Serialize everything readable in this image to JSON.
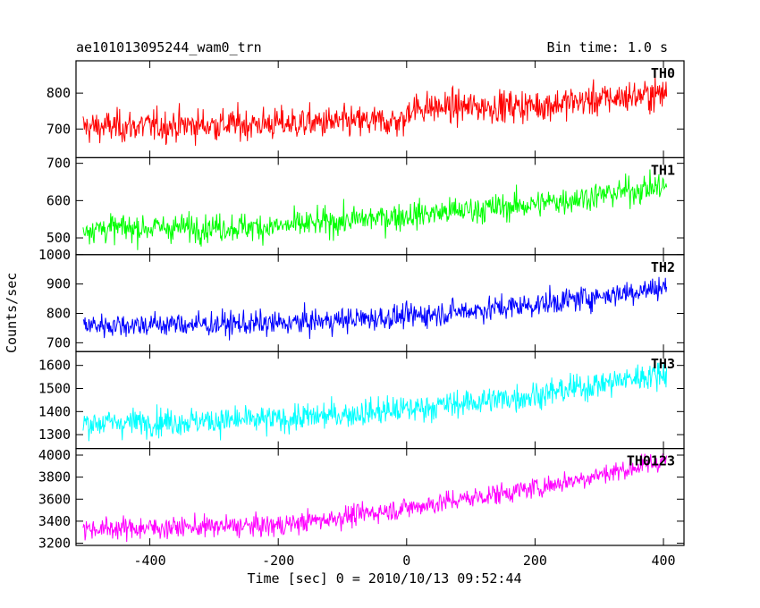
{
  "header": {
    "title": "ae101013095244_wam0_trn",
    "bin_time": "Bin time: 1.0 s"
  },
  "chart_data": {
    "type": "line",
    "title": "ae101013095244_wam0_trn",
    "xlabel": "Time [sec] 0 = 2010/10/13 09:52:44",
    "ylabel": "Counts/sec",
    "xlim": [
      -515,
      432
    ],
    "xticks": [
      -400,
      -200,
      0,
      200,
      400
    ],
    "grid": false,
    "panels": [
      {
        "name": "TH0",
        "color": "#ff0000",
        "ylim": [
          620,
          890
        ],
        "yticks": [
          700,
          800
        ],
        "series": {
          "x_start": -504,
          "x_end": 405,
          "trend_x": [
            -504,
            -200,
            0,
            1,
            200,
            405
          ],
          "trend_y": [
            705,
            715,
            722,
            758,
            765,
            800
          ],
          "noise_sd": 30
        }
      },
      {
        "name": "TH1",
        "color": "#00ff00",
        "ylim": [
          455,
          715
        ],
        "yticks": [
          500,
          600,
          700
        ],
        "series": {
          "x_start": -504,
          "x_end": 405,
          "trend_x": [
            -504,
            -200,
            0,
            200,
            405
          ],
          "trend_y": [
            525,
            530,
            560,
            590,
            640
          ],
          "noise_sd": 25
        }
      },
      {
        "name": "TH2",
        "color": "#0000ff",
        "ylim": [
          670,
          1000
        ],
        "yticks": [
          700,
          800,
          900,
          1000
        ],
        "series": {
          "x_start": -504,
          "x_end": 405,
          "trend_x": [
            -504,
            -200,
            0,
            200,
            405
          ],
          "trend_y": [
            760,
            765,
            790,
            830,
            890
          ],
          "noise_sd": 28
        }
      },
      {
        "name": "TH3",
        "color": "#00ffff",
        "ylim": [
          1240,
          1660
        ],
        "yticks": [
          1300,
          1400,
          1500,
          1600
        ],
        "series": {
          "x_start": -504,
          "x_end": 405,
          "trend_x": [
            -504,
            -200,
            0,
            200,
            405
          ],
          "trend_y": [
            1350,
            1365,
            1410,
            1470,
            1570
          ],
          "noise_sd": 40
        }
      },
      {
        "name": "TH0123",
        "color": "#ff00ff",
        "ylim": [
          3180,
          4060
        ],
        "yticks": [
          3200,
          3400,
          3600,
          3800,
          4000
        ],
        "series": {
          "x_start": -504,
          "x_end": 405,
          "trend_x": [
            -504,
            -200,
            0,
            200,
            405
          ],
          "trend_y": [
            3330,
            3360,
            3520,
            3700,
            3950
          ],
          "noise_sd": 65
        }
      }
    ]
  }
}
